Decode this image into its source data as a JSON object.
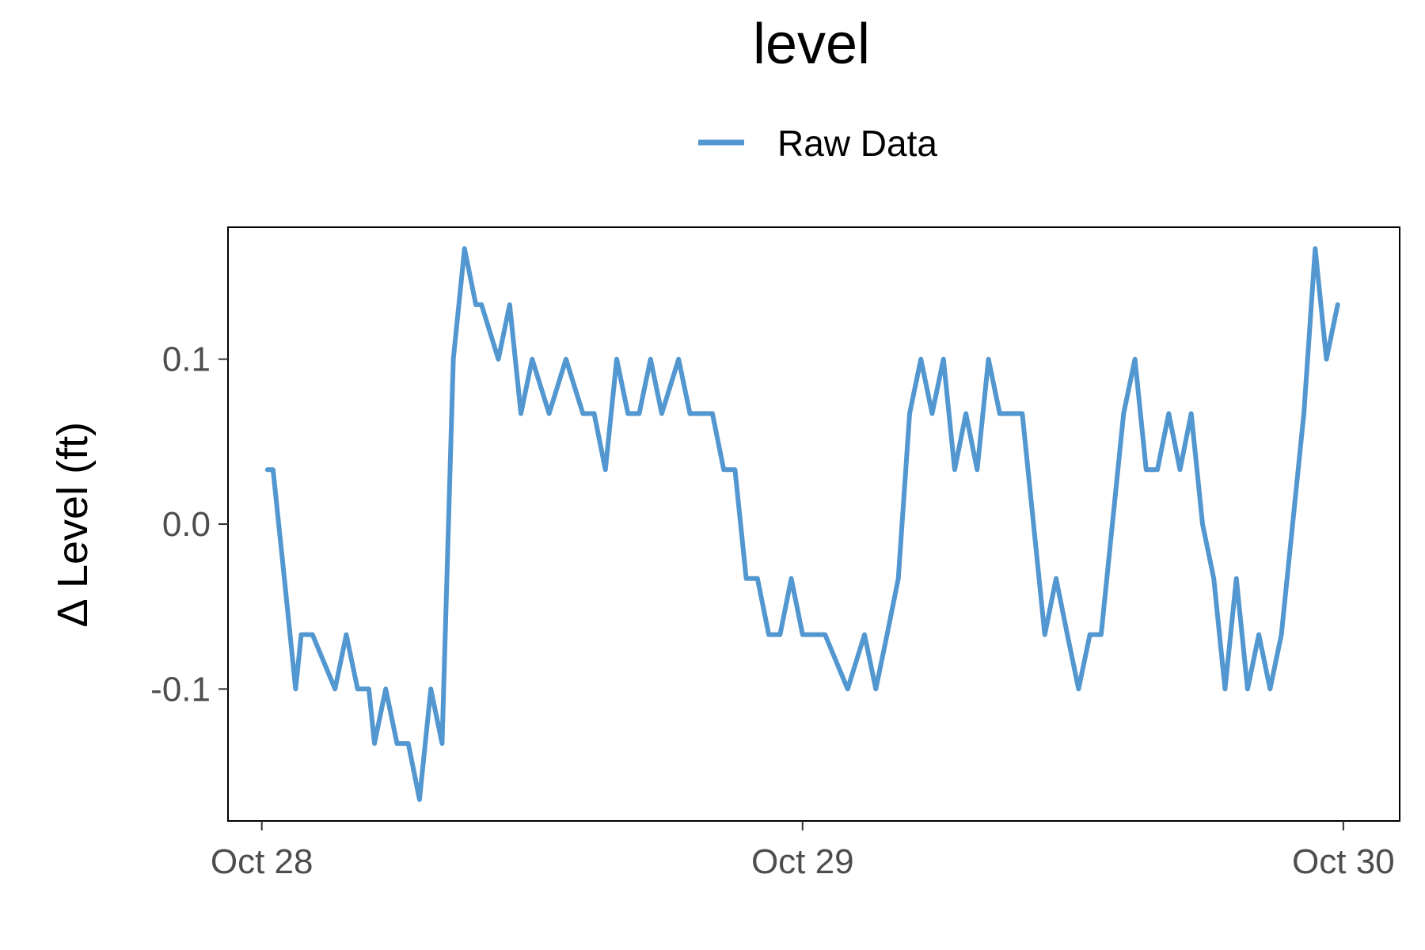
{
  "chart_data": {
    "type": "line",
    "title": "level",
    "ylabel": "∆ Level (ft)",
    "xlabel": "",
    "legend": {
      "position": "top",
      "entries": [
        "Raw Data"
      ]
    },
    "grid": false,
    "x_ticks": [
      "Oct 28",
      "Oct 29",
      "Oct 30"
    ],
    "y_ticks": [
      "-0.1",
      "0.0",
      "0.1"
    ],
    "ylim": [
      -0.18,
      0.18
    ],
    "xlim": [
      "Oct 27 22:30",
      "Oct 30 02:30"
    ],
    "series": [
      {
        "name": "Raw Data",
        "color": "#5297d0",
        "x": [
          "Oct 28 00:15",
          "Oct 28 00:30",
          "Oct 28 01:00",
          "Oct 28 01:30",
          "Oct 28 01:45",
          "Oct 28 02:15",
          "Oct 28 03:15",
          "Oct 28 03:45",
          "Oct 28 04:15",
          "Oct 28 04:45",
          "Oct 28 05:00",
          "Oct 28 05:30",
          "Oct 28 06:00",
          "Oct 28 06:30",
          "Oct 28 07:00",
          "Oct 28 07:30",
          "Oct 28 08:00",
          "Oct 28 08:30",
          "Oct 28 09:00",
          "Oct 28 09:30",
          "Oct 28 09:45",
          "Oct 28 10:30",
          "Oct 28 11:00",
          "Oct 28 11:30",
          "Oct 28 12:00",
          "Oct 28 12:45",
          "Oct 28 13:30",
          "Oct 28 14:15",
          "Oct 28 14:45",
          "Oct 28 15:15",
          "Oct 28 15:45",
          "Oct 28 16:15",
          "Oct 28 16:45",
          "Oct 28 17:15",
          "Oct 28 17:45",
          "Oct 28 18:30",
          "Oct 28 19:00",
          "Oct 28 19:30",
          "Oct 28 20:00",
          "Oct 28 20:30",
          "Oct 28 21:00",
          "Oct 28 21:30",
          "Oct 28 22:00",
          "Oct 28 22:30",
          "Oct 28 23:00",
          "Oct 28 23:30",
          "Oct 29 00:00",
          "Oct 29 01:00",
          "Oct 29 02:00",
          "Oct 29 02:45",
          "Oct 29 03:15",
          "Oct 29 03:45",
          "Oct 29 04:15",
          "Oct 29 04:45",
          "Oct 29 05:15",
          "Oct 29 05:45",
          "Oct 29 06:15",
          "Oct 29 06:45",
          "Oct 29 07:15",
          "Oct 29 07:45",
          "Oct 29 08:15",
          "Oct 29 08:45",
          "Oct 29 09:15",
          "Oct 29 09:45",
          "Oct 29 10:15",
          "Oct 29 10:45",
          "Oct 29 11:15",
          "Oct 29 11:45",
          "Oct 29 12:15",
          "Oct 29 12:45",
          "Oct 29 13:15",
          "Oct 29 13:45",
          "Oct 29 14:15",
          "Oct 29 14:45",
          "Oct 29 15:15",
          "Oct 29 15:45",
          "Oct 29 16:15",
          "Oct 29 16:45",
          "Oct 29 17:15",
          "Oct 29 17:45",
          "Oct 29 18:15",
          "Oct 29 18:45",
          "Oct 29 19:15",
          "Oct 29 19:45",
          "Oct 29 20:15",
          "Oct 29 20:45",
          "Oct 29 21:15",
          "Oct 29 21:45",
          "Oct 29 22:15",
          "Oct 29 22:45",
          "Oct 29 23:15",
          "Oct 29 23:45"
        ],
        "y": [
          0.033,
          0.033,
          -0.033,
          -0.1,
          -0.067,
          -0.067,
          -0.1,
          -0.067,
          -0.1,
          -0.1,
          -0.133,
          -0.1,
          -0.133,
          -0.133,
          -0.167,
          -0.1,
          -0.133,
          0.1,
          0.167,
          0.133,
          0.133,
          0.1,
          0.133,
          0.067,
          0.1,
          0.067,
          0.1,
          0.067,
          0.067,
          0.033,
          0.1,
          0.067,
          0.067,
          0.1,
          0.067,
          0.1,
          0.067,
          0.067,
          0.067,
          0.033,
          0.033,
          -0.033,
          -0.033,
          -0.067,
          -0.067,
          -0.033,
          -0.067,
          -0.067,
          -0.1,
          -0.067,
          -0.1,
          -0.067,
          -0.033,
          0.067,
          0.1,
          0.067,
          0.1,
          0.033,
          0.067,
          0.033,
          0.1,
          0.067,
          0.067,
          0.067,
          0.0,
          -0.067,
          -0.033,
          -0.067,
          -0.1,
          -0.067,
          -0.067,
          0.0,
          0.067,
          0.1,
          0.033,
          0.033,
          0.067,
          0.033,
          0.067,
          0.0,
          -0.033,
          -0.1,
          -0.033,
          -0.1,
          -0.067,
          -0.1,
          -0.067,
          0.0,
          0.067,
          0.167,
          0.1,
          0.133
        ]
      }
    ]
  }
}
